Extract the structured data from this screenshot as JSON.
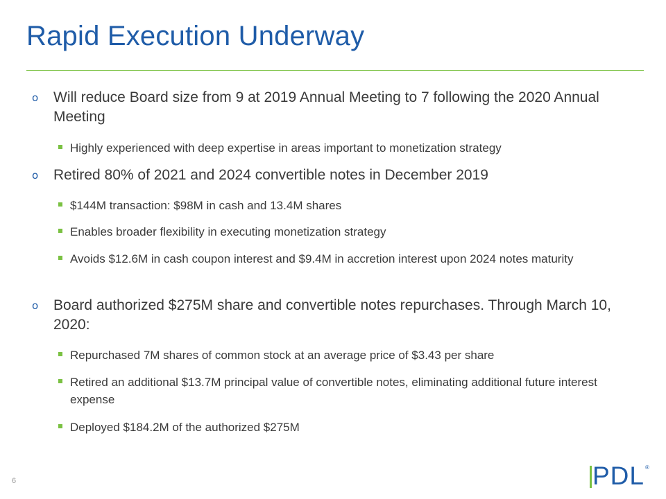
{
  "slide": {
    "title": "Rapid Execution Underway",
    "page_number": "6",
    "logo_text": "PDL",
    "logo_mark": "®",
    "colors": {
      "title": "#1f5ca8",
      "rule": "#7ac142",
      "sub_bullet": "#7ac142",
      "body_text": "#3a3a3a"
    }
  },
  "bullets": [
    {
      "text": "Will reduce Board size from 9 at 2019 Annual Meeting to 7 following the 2020 Annual Meeting",
      "subs": [
        "Highly experienced with deep expertise in areas important to monetization strategy"
      ]
    },
    {
      "text": "Retired 80% of 2021 and 2024 convertible notes in December 2019",
      "subs": [
        "$144M transaction: $98M in cash and 13.4M shares",
        "Enables broader flexibility in executing monetization strategy",
        "Avoids $12.6M in cash coupon interest and $9.4M in accretion interest upon 2024 notes maturity"
      ]
    },
    {
      "text": "Board authorized $275M share and convertible notes repurchases. Through March 10, 2020:",
      "subs": [
        "Repurchased 7M shares of common stock at an average price of $3.43 per share",
        "Retired an additional $13.7M principal value of convertible notes, eliminating additional future interest expense",
        "Deployed $184.2M of the authorized $275M"
      ]
    }
  ]
}
